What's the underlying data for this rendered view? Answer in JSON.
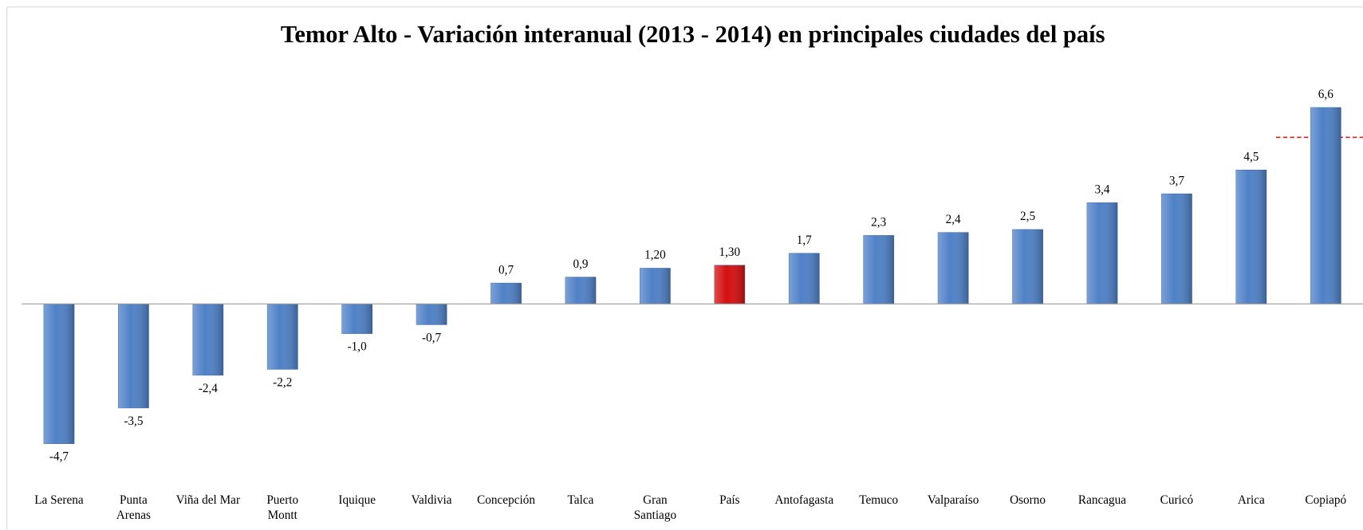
{
  "chart_data": {
    "type": "bar",
    "title": "Temor Alto - Variación interanual (2013 - 2014) en principales ciudades del país",
    "categories": [
      "La Serena",
      "Punta\nArenas",
      "Viña del Mar",
      "Puerto\nMontt",
      "Iquique",
      "Valdivia",
      "Concepción",
      "Talca",
      "Gran\nSantiago",
      "País",
      "Antofagasta",
      "Temuco",
      "Valparaíso",
      "Osorno",
      "Rancagua",
      "Curicó",
      "Arica",
      "Copiapó"
    ],
    "values": [
      -4.7,
      -3.5,
      -2.4,
      -2.2,
      -1.0,
      -0.7,
      0.7,
      0.9,
      1.2,
      1.3,
      1.7,
      2.3,
      2.4,
      2.5,
      3.4,
      3.7,
      4.5,
      6.6
    ],
    "value_labels": [
      "-4,7",
      "-3,5",
      "-2,4",
      "-2,2",
      "-1,0",
      "-0,7",
      "0,7",
      "0,9",
      "1,20",
      "1,30",
      "1,7",
      "2,3",
      "2,4",
      "2,5",
      "3,4",
      "3,7",
      "4,5",
      "6,6"
    ],
    "colors": [
      "#4f81c7",
      "#4f81c7",
      "#4f81c7",
      "#4f81c7",
      "#4f81c7",
      "#4f81c7",
      "#4f81c7",
      "#4f81c7",
      "#4f81c7",
      "#d40f0f",
      "#4f81c7",
      "#4f81c7",
      "#4f81c7",
      "#4f81c7",
      "#4f81c7",
      "#4f81c7",
      "#4f81c7",
      "#4f81c7"
    ],
    "ylim": [
      -5,
      7
    ]
  }
}
